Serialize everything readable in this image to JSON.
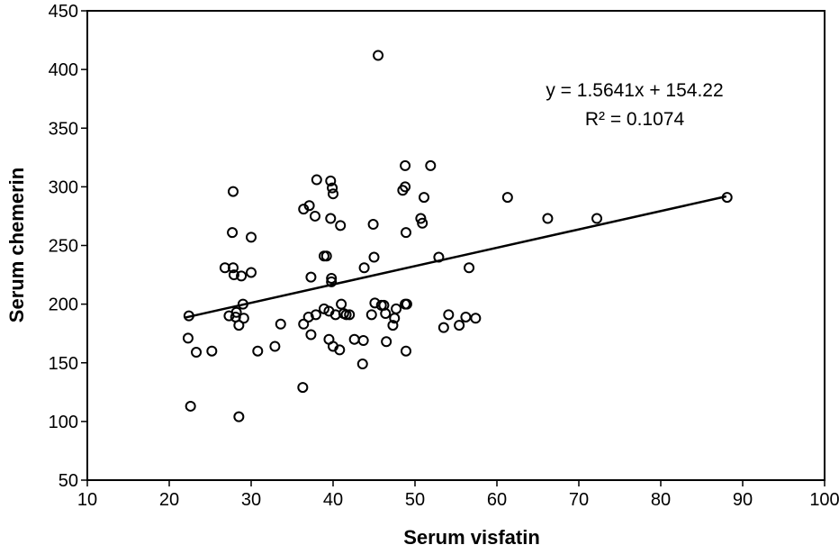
{
  "chart_data": {
    "type": "scatter",
    "xlabel": "Serum visfatin",
    "ylabel": "Serum chemerin",
    "annotations": [
      "y = 1.5641x + 154.22",
      "R² = 0.1074"
    ],
    "xlim": [
      10,
      100
    ],
    "ylim": [
      50,
      450
    ],
    "xticks": [
      10,
      20,
      30,
      40,
      50,
      60,
      70,
      80,
      90,
      100
    ],
    "yticks": [
      50,
      100,
      150,
      200,
      250,
      300,
      350,
      400,
      450
    ],
    "color": "#000000",
    "trendline": {
      "slope": 1.5641,
      "intercept": 154.22,
      "x": [
        22,
        88
      ]
    },
    "x": [
      22.4,
      22.3,
      22.6,
      23.3,
      25.2,
      26.8,
      27.3,
      27.7,
      27.8,
      27.8,
      27.9,
      28.1,
      28.2,
      28.5,
      28.5,
      28.8,
      29.0,
      29.1,
      30.0,
      30.0,
      30.8,
      32.9,
      33.6,
      36.3,
      36.4,
      36.4,
      37.0,
      37.1,
      37.3,
      37.3,
      37.8,
      37.9,
      38.0,
      38.9,
      38.9,
      39.2,
      39.5,
      39.5,
      39.7,
      39.7,
      39.8,
      39.8,
      39.9,
      40.0,
      40.0,
      40.3,
      40.8,
      40.9,
      41.0,
      41.3,
      41.6,
      42.0,
      42.6,
      43.6,
      43.7,
      43.8,
      44.7,
      44.9,
      45.0,
      45.1,
      45.5,
      45.9,
      46.2,
      46.4,
      46.5,
      47.3,
      47.5,
      47.7,
      48.5,
      48.8,
      48.8,
      48.9,
      48.8,
      49.0,
      48.9,
      50.7,
      50.9,
      51.1,
      51.9,
      52.9,
      53.5,
      54.1,
      55.4,
      56.2,
      56.6,
      57.4,
      61.3,
      66.2,
      72.2,
      88.1
    ],
    "y": [
      190,
      171,
      113,
      159,
      160,
      231,
      190,
      261,
      296,
      231,
      225,
      189,
      193,
      182,
      104,
      224,
      200,
      188,
      257,
      227,
      160,
      164,
      183,
      129,
      281,
      183,
      189,
      284,
      174,
      223,
      275,
      191,
      306,
      241,
      196,
      241,
      194,
      170,
      305,
      273,
      222,
      219,
      299,
      294,
      164,
      191,
      161,
      267,
      200,
      192,
      191,
      191,
      170,
      149,
      169,
      231,
      191,
      268,
      240,
      201,
      412,
      199,
      199,
      192,
      168,
      182,
      188,
      196,
      297,
      318,
      300,
      261,
      200,
      200,
      160,
      273,
      269,
      291,
      318,
      240,
      180,
      191,
      182,
      189,
      231,
      188,
      291,
      273,
      273,
      291
    ]
  }
}
